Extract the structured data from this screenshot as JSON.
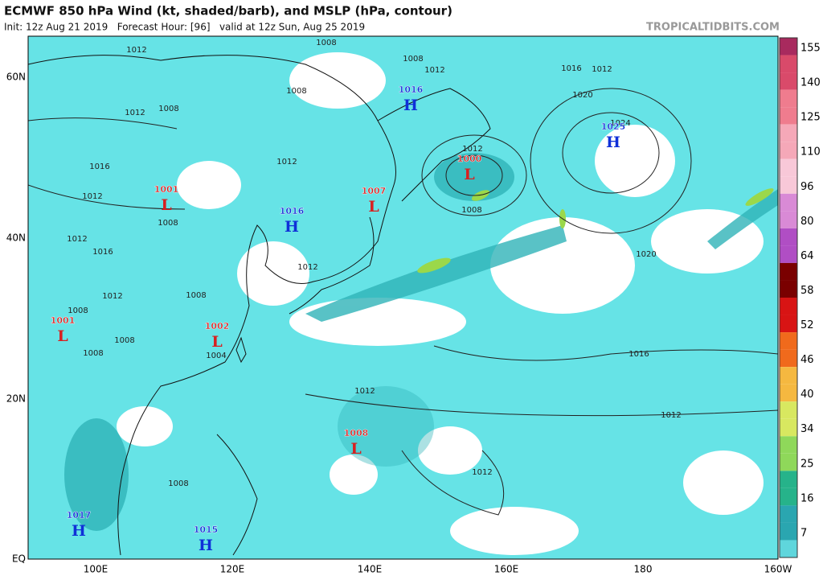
{
  "header": {
    "title": "ECMWF 850 hPa Wind (kt, shaded/barb), and MSLP (hPa, contour)",
    "subtitle": "Init: 12z Aug 21 2019   Forecast Hour: [96]   valid at 12z Sun, Aug 25 2019",
    "credit": "TROPICALTIDBITS.COM"
  },
  "lat_labels": [
    "60N",
    "40N",
    "20N",
    "EQ"
  ],
  "lon_labels": [
    "100E",
    "120E",
    "140E",
    "160E",
    "180",
    "160W"
  ],
  "colorbar": {
    "labels": [
      155,
      140,
      125,
      110,
      96,
      80,
      64,
      58,
      52,
      46,
      40,
      34,
      25,
      16,
      7
    ]
  },
  "centers": [
    {
      "letter": "H",
      "value": "1016"
    },
    {
      "letter": "H",
      "value": "1025"
    },
    {
      "letter": "L",
      "value": "1000"
    },
    {
      "letter": "L",
      "value": "1001"
    },
    {
      "letter": "L",
      "value": "1007"
    },
    {
      "letter": "H",
      "value": "1016"
    },
    {
      "letter": "L",
      "value": "1001"
    },
    {
      "letter": "L",
      "value": "1002"
    },
    {
      "letter": "L",
      "value": "1008"
    },
    {
      "letter": "H",
      "value": "1017"
    },
    {
      "letter": "H",
      "value": "1015"
    }
  ],
  "isobar_labels": [
    "1012",
    "1008",
    "1008",
    "1012",
    "1016",
    "1012",
    "1008",
    "1020",
    "1012",
    "1008",
    "1024",
    "1012",
    "1012",
    "1016",
    "1012",
    "1008",
    "1008",
    "1012",
    "1016",
    "1012",
    "1020",
    "1008",
    "1012",
    "1008",
    "1008",
    "1004",
    "1016",
    "1008",
    "1012",
    "1012",
    "1012",
    "1008"
  ]
}
